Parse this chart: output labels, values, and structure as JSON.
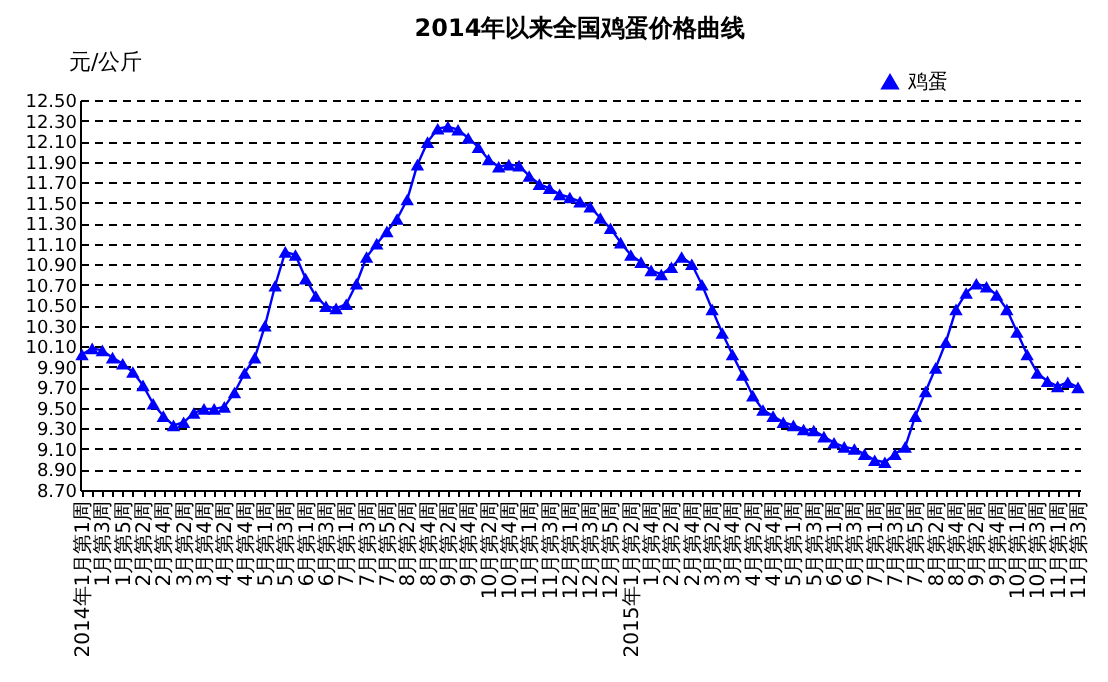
{
  "chart_data": {
    "type": "line",
    "title": "2014年以来全国鸡蛋价格曲线",
    "ylabel": "元/公斤",
    "categories": [
      "2014年1月第1周",
      null,
      "1月第3周",
      null,
      "1月第5周",
      null,
      "2月第2周",
      null,
      "2月第4周",
      null,
      "3月第2周",
      null,
      "3月第4周",
      null,
      "4月第2周",
      null,
      "4月第4周",
      null,
      "5月第1周",
      null,
      "5月第3周",
      null,
      "6月第1周",
      null,
      "6月第3周",
      null,
      "7月第1周",
      null,
      "7月第3周",
      null,
      "7月第5周",
      null,
      "8月第2周",
      null,
      "8月第4周",
      null,
      "9月第2周",
      null,
      "9月第4周",
      null,
      "10月第2周",
      null,
      "10月第4周",
      null,
      "11月第1周",
      null,
      "11月第3周",
      null,
      "12月第1周",
      null,
      "12月第3周",
      null,
      "12月第5周",
      null,
      "2015年1月第2周",
      null,
      "1月第4周",
      null,
      "2月第2周",
      null,
      "2月第4周",
      null,
      "3月第2周",
      null,
      "3月第4周",
      null,
      "4月第2周",
      null,
      "4月第4周",
      null,
      "5月第1周",
      null,
      "5月第3周",
      null,
      "6月第1周",
      null,
      "6月第3周",
      null,
      "7月第1周",
      null,
      "7月第3周",
      null,
      "7月第5周",
      null,
      "8月第2周",
      null,
      "8月第4周",
      null,
      "9月第2周",
      null,
      "9月第4周",
      null,
      "10月第1周",
      null,
      "10月第3周",
      null,
      "11月第1周",
      null,
      "11月第3周"
    ],
    "series": [
      {
        "name": "鸡蛋",
        "color": "#0000ff",
        "values": [
          10.02,
          10.08,
          10.06,
          9.99,
          9.93,
          9.85,
          9.72,
          9.54,
          9.42,
          9.33,
          9.36,
          9.45,
          9.49,
          9.49,
          9.51,
          9.65,
          9.84,
          9.99,
          10.3,
          10.69,
          11.02,
          10.99,
          10.76,
          10.59,
          10.49,
          10.47,
          10.51,
          10.71,
          10.97,
          11.1,
          11.22,
          11.34,
          11.53,
          11.87,
          12.09,
          12.22,
          12.24,
          12.21,
          12.13,
          12.04,
          11.92,
          11.85,
          11.87,
          11.86,
          11.76,
          11.68,
          11.64,
          11.58,
          11.55,
          11.51,
          11.46,
          11.35,
          11.25,
          11.11,
          10.99,
          10.92,
          10.84,
          10.8,
          10.87,
          10.97,
          10.9,
          10.7,
          10.46,
          10.23,
          10.02,
          9.82,
          9.62,
          9.48,
          9.42,
          9.36,
          9.33,
          9.29,
          9.28,
          9.22,
          9.16,
          9.12,
          9.1,
          9.05,
          8.99,
          8.97,
          9.05,
          9.12,
          9.42,
          9.66,
          9.89,
          10.14,
          10.46,
          10.62,
          10.71,
          10.68,
          10.6,
          10.46,
          10.24,
          10.02,
          9.84,
          9.76,
          9.71,
          9.75,
          9.7
        ]
      }
    ],
    "ylim": [
      8.7,
      12.5
    ],
    "yticks": [
      {
        "value": 8.7,
        "label": "8.70"
      },
      {
        "value": 8.9,
        "label": "8.90"
      },
      {
        "value": 9.1,
        "label": "9.10"
      },
      {
        "value": 9.3,
        "label": "9.30"
      },
      {
        "value": 9.5,
        "label": "9.50"
      },
      {
        "value": 9.7,
        "label": "9.70"
      },
      {
        "value": 9.9,
        "label": "9.90"
      },
      {
        "value": 10.1,
        "label": "10.10"
      },
      {
        "value": 10.3,
        "label": "10.30"
      },
      {
        "value": 10.5,
        "label": "10.50"
      },
      {
        "value": 10.7,
        "label": "10.70"
      },
      {
        "value": 10.9,
        "label": "10.90"
      },
      {
        "value": 11.1,
        "label": "11.10"
      },
      {
        "value": 11.3,
        "label": "11.30"
      },
      {
        "value": 11.5,
        "label": "11.50"
      },
      {
        "value": 11.7,
        "label": "11.70"
      },
      {
        "value": 11.9,
        "label": "11.90"
      },
      {
        "value": 12.1,
        "label": "12.10"
      },
      {
        "value": 12.3,
        "label": "12.30"
      },
      {
        "value": 12.5,
        "label": "12.50"
      }
    ],
    "grid": "y",
    "legend": "top right",
    "marker": "triangle",
    "line_style": "solid"
  }
}
